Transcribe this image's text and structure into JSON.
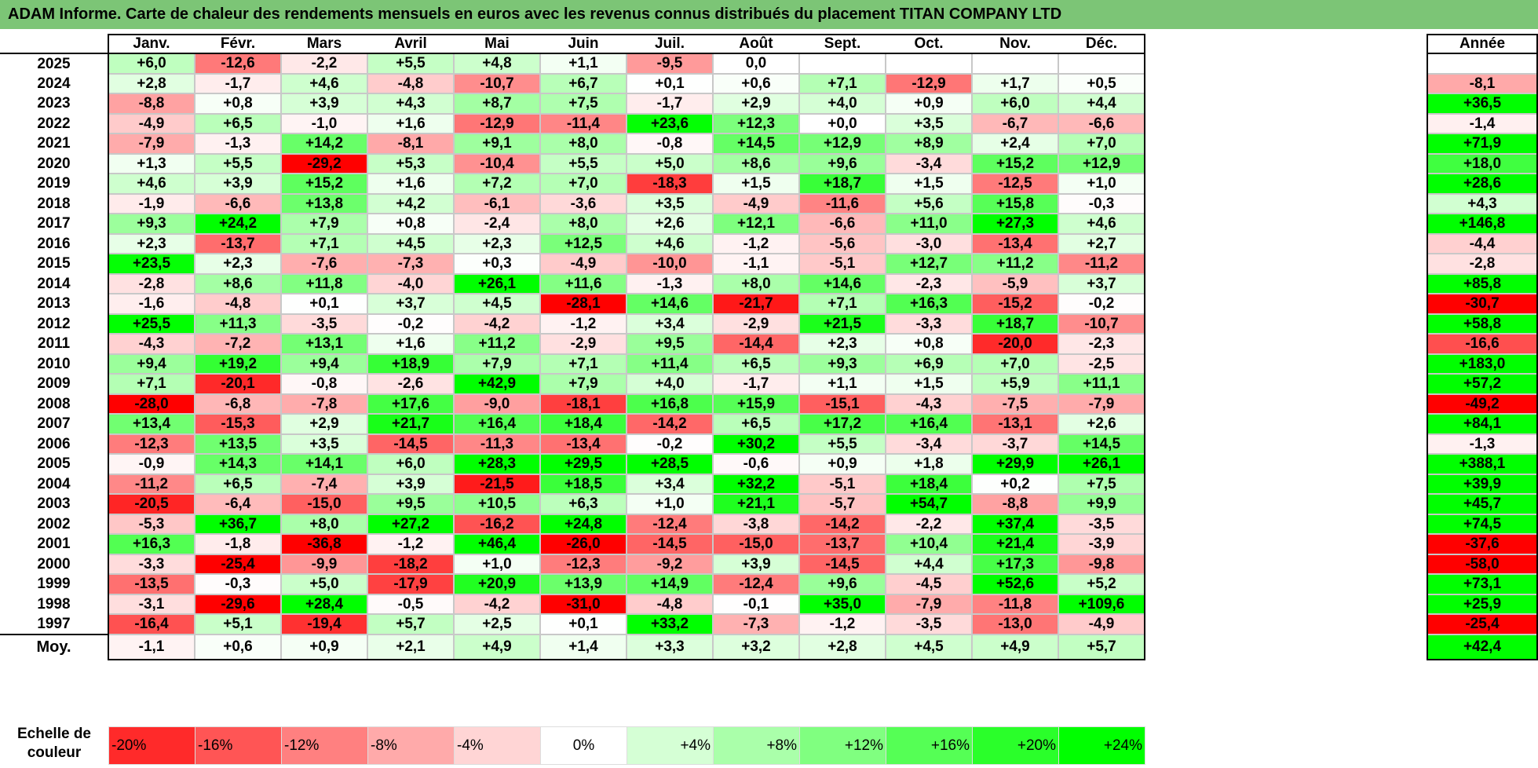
{
  "title": "ADAM Informe. Carte de chaleur des rendements mensuels en euros avec les revenus connus distribués du placement TITAN COMPANY LTD",
  "chart_data": {
    "type": "heatmap",
    "months": [
      "Janv.",
      "Févr.",
      "Mars",
      "Avril",
      "Mai",
      "Juin",
      "Juil.",
      "Août",
      "Sept.",
      "Oct.",
      "Nov.",
      "Déc."
    ],
    "annual_label": "Année",
    "rows": [
      {
        "year": "2025",
        "values": [
          "+6,0",
          "-12,6",
          "-2,2",
          "+5,5",
          "+4,8",
          "+1,1",
          "-9,5",
          "0,0",
          "",
          "",
          "",
          ""
        ],
        "annual": ""
      },
      {
        "year": "2024",
        "values": [
          "+2,8",
          "-1,7",
          "+4,6",
          "-4,8",
          "-10,7",
          "+6,7",
          "+0,1",
          "+0,6",
          "+7,1",
          "-12,9",
          "+1,7",
          "+0,5"
        ],
        "annual": "-8,1"
      },
      {
        "year": "2023",
        "values": [
          "-8,8",
          "+0,8",
          "+3,9",
          "+4,3",
          "+8,7",
          "+7,5",
          "-1,7",
          "+2,9",
          "+4,0",
          "+0,9",
          "+6,0",
          "+4,4"
        ],
        "annual": "+36,5"
      },
      {
        "year": "2022",
        "values": [
          "-4,9",
          "+6,5",
          "-1,0",
          "+1,6",
          "-12,9",
          "-11,4",
          "+23,6",
          "+12,3",
          "+0,0",
          "+3,5",
          "-6,7",
          "-6,6"
        ],
        "annual": "-1,4"
      },
      {
        "year": "2021",
        "values": [
          "-7,9",
          "-1,3",
          "+14,2",
          "-8,1",
          "+9,1",
          "+8,0",
          "-0,8",
          "+14,5",
          "+12,9",
          "+8,9",
          "+2,4",
          "+7,0"
        ],
        "annual": "+71,9"
      },
      {
        "year": "2020",
        "values": [
          "+1,3",
          "+5,5",
          "-29,2",
          "+5,3",
          "-10,4",
          "+5,5",
          "+5,0",
          "+8,6",
          "+9,6",
          "-3,4",
          "+15,2",
          "+12,9"
        ],
        "annual": "+18,0"
      },
      {
        "year": "2019",
        "values": [
          "+4,6",
          "+3,9",
          "+15,2",
          "+1,6",
          "+7,2",
          "+7,0",
          "-18,3",
          "+1,5",
          "+18,7",
          "+1,5",
          "-12,5",
          "+1,0"
        ],
        "annual": "+28,6"
      },
      {
        "year": "2018",
        "values": [
          "-1,9",
          "-6,6",
          "+13,8",
          "+4,2",
          "-6,1",
          "-3,6",
          "+3,5",
          "-4,9",
          "-11,6",
          "+5,6",
          "+15,8",
          "-0,3"
        ],
        "annual": "+4,3"
      },
      {
        "year": "2017",
        "values": [
          "+9,3",
          "+24,2",
          "+7,9",
          "+0,8",
          "-2,4",
          "+8,0",
          "+2,6",
          "+12,1",
          "-6,6",
          "+11,0",
          "+27,3",
          "+4,6"
        ],
        "annual": "+146,8"
      },
      {
        "year": "2016",
        "values": [
          "+2,3",
          "-13,7",
          "+7,1",
          "+4,5",
          "+2,3",
          "+12,5",
          "+4,6",
          "-1,2",
          "-5,6",
          "-3,0",
          "-13,4",
          "+2,7"
        ],
        "annual": "-4,4"
      },
      {
        "year": "2015",
        "values": [
          "+23,5",
          "+2,3",
          "-7,6",
          "-7,3",
          "+0,3",
          "-4,9",
          "-10,0",
          "-1,1",
          "-5,1",
          "+12,7",
          "+11,2",
          "-11,2"
        ],
        "annual": "-2,8"
      },
      {
        "year": "2014",
        "values": [
          "-2,8",
          "+8,6",
          "+11,8",
          "-4,0",
          "+26,1",
          "+11,6",
          "-1,3",
          "+8,0",
          "+14,6",
          "-2,3",
          "-5,9",
          "+3,7"
        ],
        "annual": "+85,8"
      },
      {
        "year": "2013",
        "values": [
          "-1,6",
          "-4,8",
          "+0,1",
          "+3,7",
          "+4,5",
          "-28,1",
          "+14,6",
          "-21,7",
          "+7,1",
          "+16,3",
          "-15,2",
          "-0,2"
        ],
        "annual": "-30,7"
      },
      {
        "year": "2012",
        "values": [
          "+25,5",
          "+11,3",
          "-3,5",
          "-0,2",
          "-4,2",
          "-1,2",
          "+3,4",
          "-2,9",
          "+21,5",
          "-3,3",
          "+18,7",
          "-10,7"
        ],
        "annual": "+58,8"
      },
      {
        "year": "2011",
        "values": [
          "-4,3",
          "-7,2",
          "+13,1",
          "+1,6",
          "+11,2",
          "-2,9",
          "+9,5",
          "-14,4",
          "+2,3",
          "+0,8",
          "-20,0",
          "-2,3"
        ],
        "annual": "-16,6"
      },
      {
        "year": "2010",
        "values": [
          "+9,4",
          "+19,2",
          "+9,4",
          "+18,9",
          "+7,9",
          "+7,1",
          "+11,4",
          "+6,5",
          "+9,3",
          "+6,9",
          "+7,0",
          "-2,5"
        ],
        "annual": "+183,0"
      },
      {
        "year": "2009",
        "values": [
          "+7,1",
          "-20,1",
          "-0,8",
          "-2,6",
          "+42,9",
          "+7,9",
          "+4,0",
          "-1,7",
          "+1,1",
          "+1,5",
          "+5,9",
          "+11,1"
        ],
        "annual": "+57,2"
      },
      {
        "year": "2008",
        "values": [
          "-28,0",
          "-6,8",
          "-7,8",
          "+17,6",
          "-9,0",
          "-18,1",
          "+16,8",
          "+15,9",
          "-15,1",
          "-4,3",
          "-7,5",
          "-7,9"
        ],
        "annual": "-49,2"
      },
      {
        "year": "2007",
        "values": [
          "+13,4",
          "-15,3",
          "+2,9",
          "+21,7",
          "+16,4",
          "+18,4",
          "-14,2",
          "+6,5",
          "+17,2",
          "+16,4",
          "-13,1",
          "+2,6"
        ],
        "annual": "+84,1"
      },
      {
        "year": "2006",
        "values": [
          "-12,3",
          "+13,5",
          "+3,5",
          "-14,5",
          "-11,3",
          "-13,4",
          "-0,2",
          "+30,2",
          "+5,5",
          "-3,4",
          "-3,7",
          "+14,5"
        ],
        "annual": "-1,3"
      },
      {
        "year": "2005",
        "values": [
          "-0,9",
          "+14,3",
          "+14,1",
          "+6,0",
          "+28,3",
          "+29,5",
          "+28,5",
          "-0,6",
          "+0,9",
          "+1,8",
          "+29,9",
          "+26,1"
        ],
        "annual": "+388,1"
      },
      {
        "year": "2004",
        "values": [
          "-11,2",
          "+6,5",
          "-7,4",
          "+3,9",
          "-21,5",
          "+18,5",
          "+3,4",
          "+32,2",
          "-5,1",
          "+18,4",
          "+0,2",
          "+7,5"
        ],
        "annual": "+39,9"
      },
      {
        "year": "2003",
        "values": [
          "-20,5",
          "-6,4",
          "-15,0",
          "+9,5",
          "+10,5",
          "+6,3",
          "+1,0",
          "+21,1",
          "-5,7",
          "+54,7",
          "-8,8",
          "+9,9"
        ],
        "annual": "+45,7"
      },
      {
        "year": "2002",
        "values": [
          "-5,3",
          "+36,7",
          "+8,0",
          "+27,2",
          "-16,2",
          "+24,8",
          "-12,4",
          "-3,8",
          "-14,2",
          "-2,2",
          "+37,4",
          "-3,5"
        ],
        "annual": "+74,5"
      },
      {
        "year": "2001",
        "values": [
          "+16,3",
          "-1,8",
          "-36,8",
          "-1,2",
          "+46,4",
          "-26,0",
          "-14,5",
          "-15,0",
          "-13,7",
          "+10,4",
          "+21,4",
          "-3,9"
        ],
        "annual": "-37,6"
      },
      {
        "year": "2000",
        "values": [
          "-3,3",
          "-25,4",
          "-9,9",
          "-18,2",
          "+1,0",
          "-12,3",
          "-9,2",
          "+3,9",
          "-14,5",
          "+4,4",
          "+17,3",
          "-9,8"
        ],
        "annual": "-58,0"
      },
      {
        "year": "1999",
        "values": [
          "-13,5",
          "-0,3",
          "+5,0",
          "-17,9",
          "+20,9",
          "+13,9",
          "+14,9",
          "-12,4",
          "+9,6",
          "-4,5",
          "+52,6",
          "+5,2"
        ],
        "annual": "+73,1"
      },
      {
        "year": "1998",
        "values": [
          "-3,1",
          "-29,6",
          "+28,4",
          "-0,5",
          "-4,2",
          "-31,0",
          "-4,8",
          "-0,1",
          "+35,0",
          "-7,9",
          "-11,8",
          "+109,6"
        ],
        "annual": "+25,9"
      },
      {
        "year": "1997",
        "values": [
          "-16,4",
          "+5,1",
          "-19,4",
          "+5,7",
          "+2,5",
          "+0,1",
          "+33,2",
          "-7,3",
          "-1,2",
          "-3,5",
          "-13,0",
          "-4,9"
        ],
        "annual": "-25,4"
      }
    ],
    "average": {
      "label": "Moy.",
      "values": [
        "-1,1",
        "+0,6",
        "+0,9",
        "+2,1",
        "+4,9",
        "+1,4",
        "+3,3",
        "+3,2",
        "+2,8",
        "+4,5",
        "+4,9",
        "+5,7"
      ],
      "annual": "+42,4"
    },
    "legend": {
      "label": "Echelle de couleur",
      "stops": [
        "-20%",
        "-16%",
        "-12%",
        "-8%",
        "-4%",
        "0%",
        "+4%",
        "+8%",
        "+12%",
        "+16%",
        "+20%",
        "+24%"
      ]
    }
  }
}
